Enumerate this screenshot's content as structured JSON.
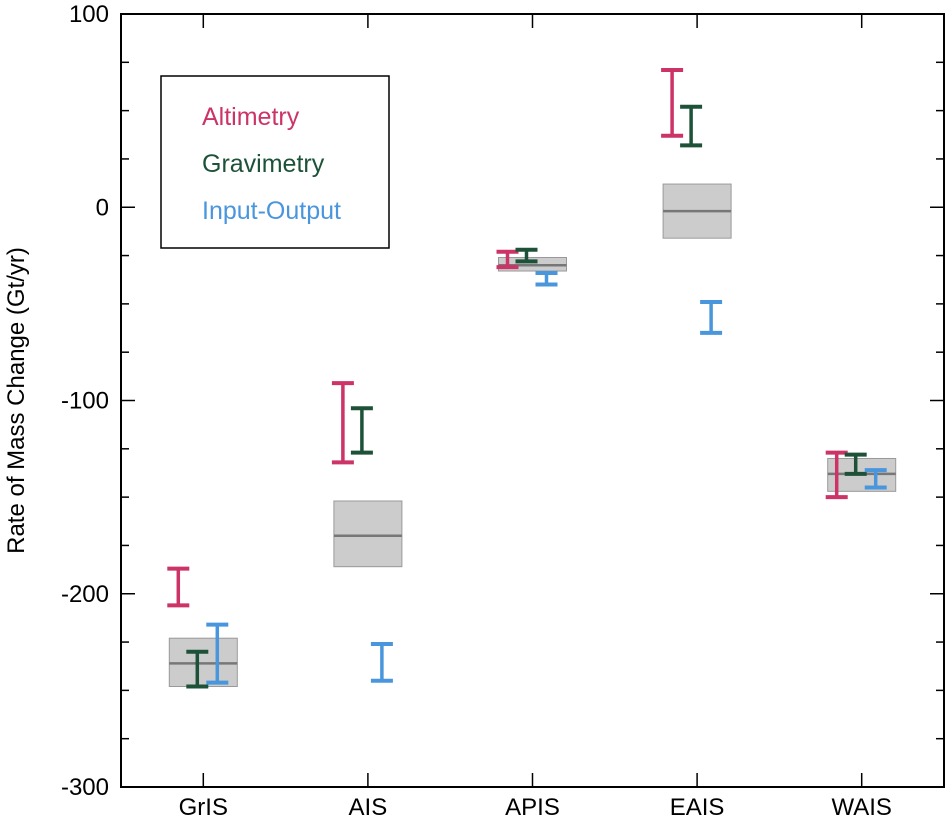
{
  "chart_data": {
    "type": "errorbar",
    "title": "",
    "xlabel": "",
    "ylabel": "Rate of Mass Change (Gt/yr)",
    "ylim": [
      -300,
      100
    ],
    "yticks": [
      {
        "value": 100,
        "label": "100"
      },
      {
        "value": 0,
        "label": "0"
      },
      {
        "value": -100,
        "label": "-100"
      },
      {
        "value": -200,
        "label": "-200"
      },
      {
        "value": -300,
        "label": "-300"
      }
    ],
    "categories": [
      "GrIS",
      "AIS",
      "APIS",
      "EAIS",
      "WAIS"
    ],
    "grid": false,
    "legend_position": "top-left",
    "series": [
      {
        "name": "Altimetry",
        "color": "#cc3366",
        "intervals": [
          {
            "category": "GrIS",
            "low": -206,
            "high": -187
          },
          {
            "category": "AIS",
            "low": -132,
            "high": -91
          },
          {
            "category": "APIS",
            "low": -31,
            "high": -23
          },
          {
            "category": "EAIS",
            "low": 37,
            "high": 71
          },
          {
            "category": "WAIS",
            "low": -150,
            "high": -127
          }
        ]
      },
      {
        "name": "Gravimetry",
        "color": "#1d5238",
        "intervals": [
          {
            "category": "GrIS",
            "low": -248,
            "high": -230
          },
          {
            "category": "AIS",
            "low": -127,
            "high": -104
          },
          {
            "category": "APIS",
            "low": -28,
            "high": -22
          },
          {
            "category": "EAIS",
            "low": 32,
            "high": 52
          },
          {
            "category": "WAIS",
            "low": -138,
            "high": -128
          }
        ]
      },
      {
        "name": "Input-Output",
        "color": "#4a96dd",
        "intervals": [
          {
            "category": "GrIS",
            "low": -246,
            "high": -216
          },
          {
            "category": "AIS",
            "low": -245,
            "high": -226
          },
          {
            "category": "APIS",
            "low": -40,
            "high": -34
          },
          {
            "category": "EAIS",
            "low": -65,
            "high": -49
          },
          {
            "category": "WAIS",
            "low": -145,
            "high": -136
          }
        ]
      }
    ],
    "reconciled": [
      {
        "category": "GrIS",
        "low": -248,
        "high": -223,
        "mid": -236
      },
      {
        "category": "AIS",
        "low": -186,
        "high": -152,
        "mid": -170
      },
      {
        "category": "APIS",
        "low": -33,
        "high": -26,
        "mid": -30
      },
      {
        "category": "EAIS",
        "low": -16,
        "high": 12,
        "mid": -2
      },
      {
        "category": "WAIS",
        "low": -147,
        "high": -130,
        "mid": -138
      }
    ],
    "reconciled_color": "#cccccc"
  }
}
